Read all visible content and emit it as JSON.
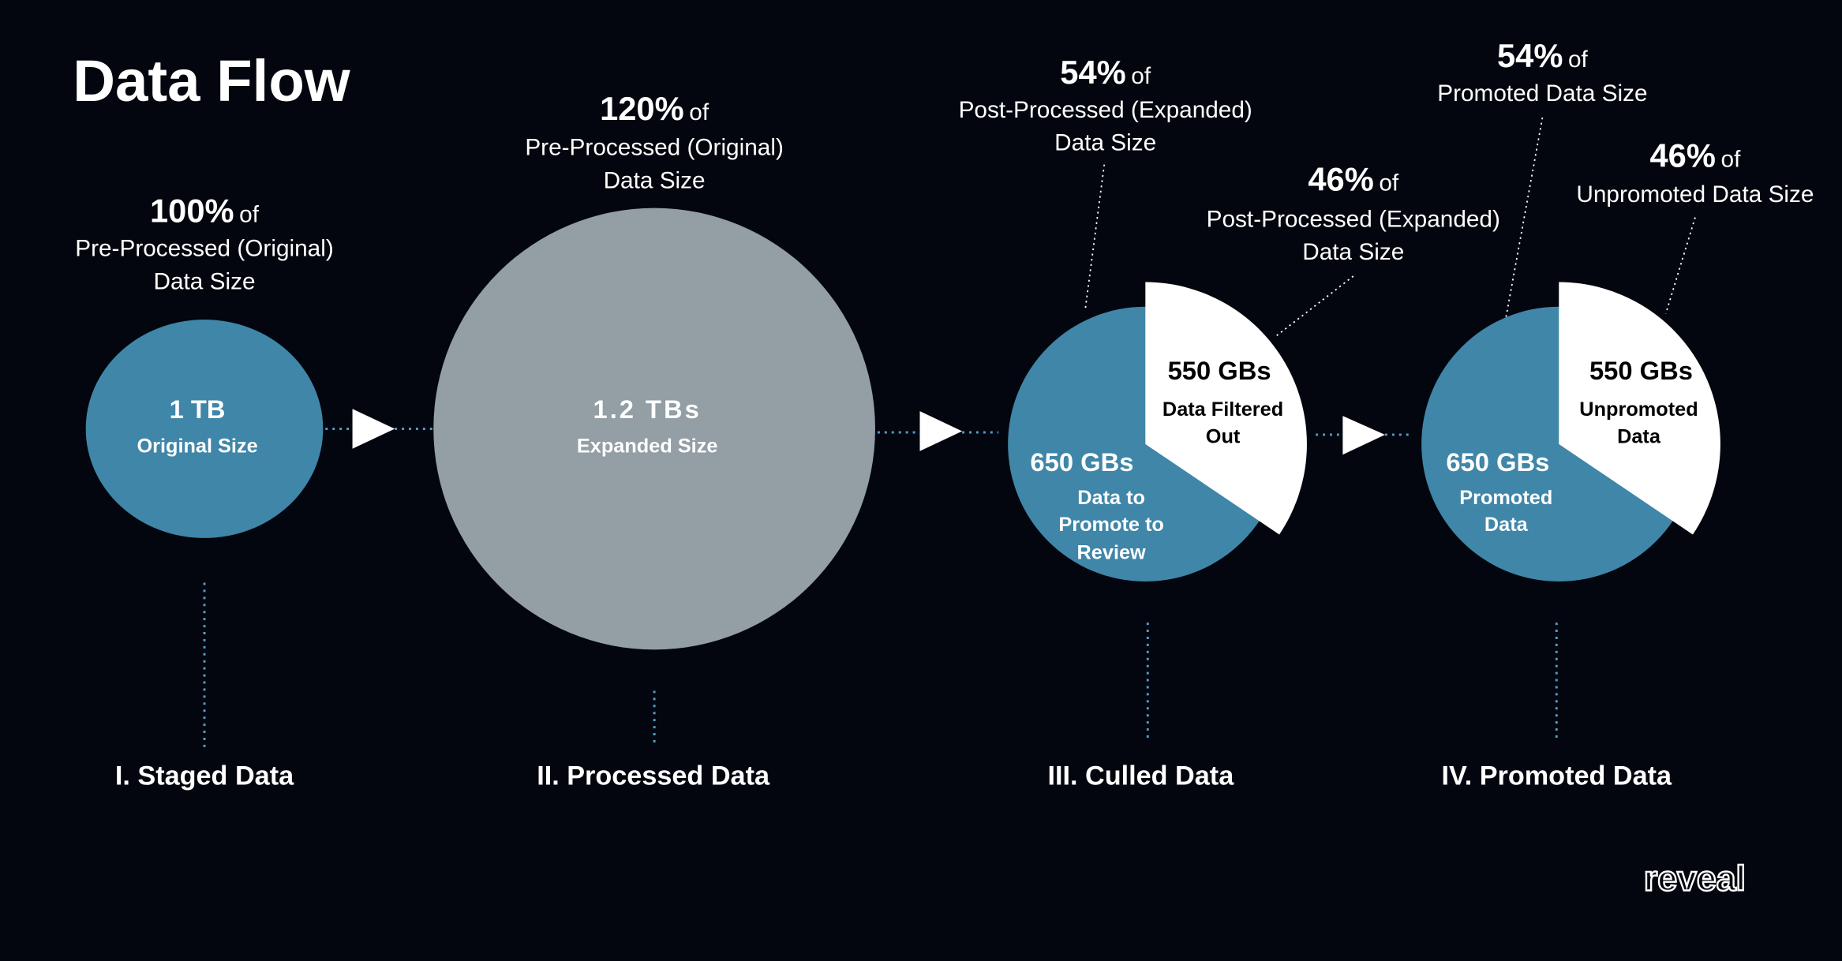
{
  "header": {
    "title": "Data Flow"
  },
  "stages": [
    {
      "note": {
        "percent": "100%",
        "of": "of",
        "lines": [
          "Pre-Processed (Original)",
          "Data Size"
        ]
      },
      "circle": {
        "size": "1 TB",
        "caption": "Original Size"
      },
      "label": "I. Staged Data"
    },
    {
      "note": {
        "percent": "120%",
        "of": "of",
        "lines": [
          "Pre-Processed (Original)",
          "Data Size"
        ]
      },
      "circle": {
        "size": "1.2 TBs",
        "caption": "Expanded Size"
      },
      "label": "II. Processed Data"
    },
    {
      "notes": [
        {
          "percent": "54%",
          "of": "of",
          "lines": [
            "Post-Processed (Expanded)",
            "Data Size"
          ]
        },
        {
          "percent": "46%",
          "of": "of",
          "lines": [
            "Post-Processed (Expanded)",
            "Data Size"
          ]
        }
      ],
      "kept": {
        "size": "650 GBs",
        "caption": [
          "Data to",
          "Promote to",
          "Review"
        ]
      },
      "removed": {
        "size": "550 GBs",
        "caption": [
          "Data Filtered",
          "Out"
        ]
      },
      "label": "III. Culled Data"
    },
    {
      "notes": [
        {
          "percent": "54%",
          "of": "of",
          "lines": [
            "Promoted Data Size"
          ]
        },
        {
          "percent": "46%",
          "of": "of",
          "lines": [
            "Unpromoted Data Size"
          ]
        }
      ],
      "kept": {
        "size": "650 GBs",
        "caption": [
          "Promoted",
          "Data"
        ]
      },
      "removed": {
        "size": "550 GBs",
        "caption": [
          "Unpromoted",
          "Data"
        ]
      },
      "label": "IV. Promoted Data"
    }
  ],
  "logo": "reveal"
}
